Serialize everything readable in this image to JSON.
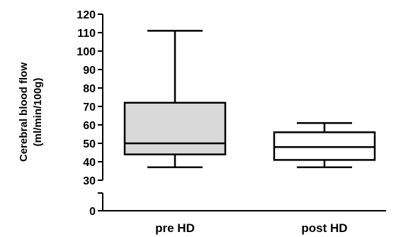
{
  "chart_data": {
    "type": "box",
    "categories": [
      "pre HD",
      "post HD"
    ],
    "boxes": [
      {
        "name": "pre HD",
        "min": 37,
        "q1": 44,
        "median": 50,
        "q3": 72,
        "max": 111,
        "fill": "#d9d9d9"
      },
      {
        "name": "post HD",
        "min": 37,
        "q1": 41,
        "median": 48,
        "q3": 56,
        "max": 61,
        "fill": "#ffffff"
      }
    ],
    "ylabel_line1": "Cerebral blood flow",
    "ylabel_line2": "(ml/min/100g)",
    "ylim": [
      30,
      120
    ],
    "yticks": [
      30,
      40,
      50,
      60,
      70,
      80,
      90,
      100,
      110,
      120
    ],
    "y_broken_axis": true,
    "y_lower_segment_ticks": [
      0
    ],
    "grid": false
  }
}
